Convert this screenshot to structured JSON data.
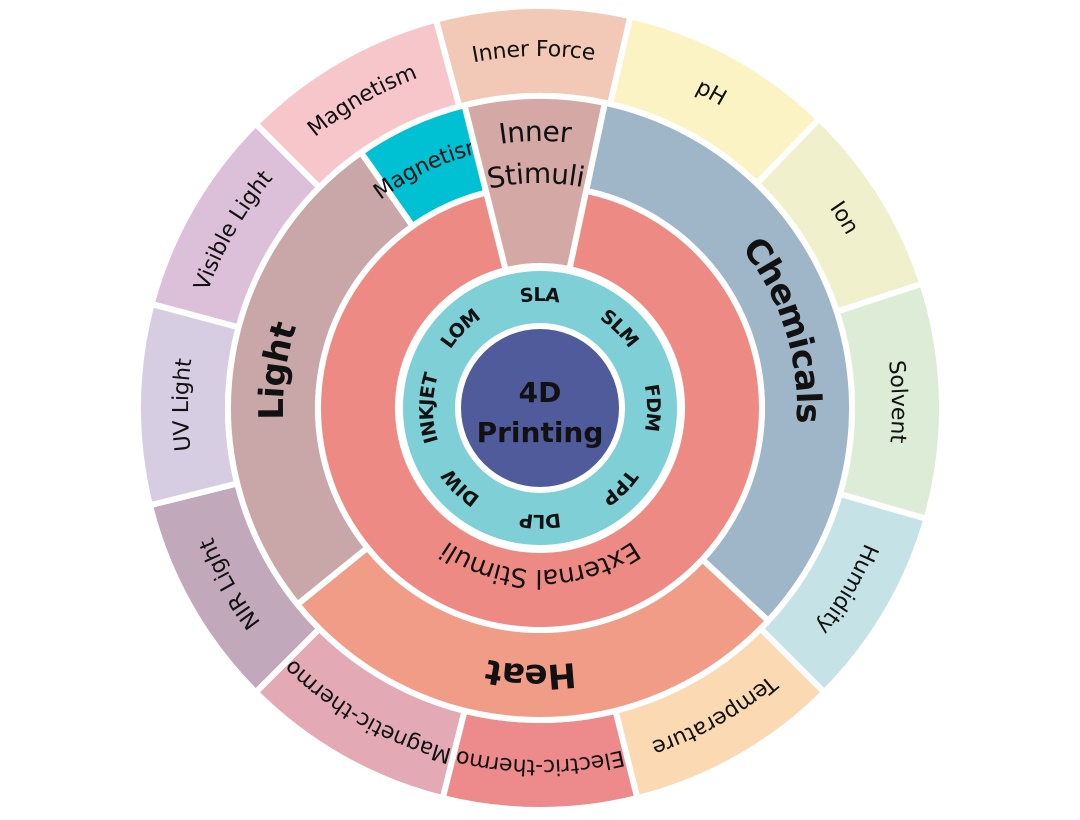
{
  "center": {
    "lines": [
      "4D",
      "Printing"
    ],
    "color": "#4f5b9a"
  },
  "methods_ring": {
    "color": "#7ecfd6",
    "items": [
      {
        "label": "SLA",
        "angle": 0
      },
      {
        "label": "SLM",
        "angle": 45
      },
      {
        "label": "FDM",
        "angle": 90
      },
      {
        "label": "TPP",
        "angle": 135
      },
      {
        "label": "DLP",
        "angle": 180
      },
      {
        "label": "DIW",
        "angle": 225
      },
      {
        "label": "INKJET",
        "angle": 270
      },
      {
        "label": "LOM",
        "angle": 315
      }
    ]
  },
  "stimuli_ring": [
    {
      "label": "External Stimuli",
      "from": 12,
      "to": 346,
      "color": "#ee8a84"
    }
  ],
  "category_ring": [
    {
      "label": "Chemicals",
      "from": 12,
      "to": 133,
      "color": "#9fb6c9"
    },
    {
      "label": "Heat",
      "from": 133,
      "to": 231,
      "color": "#f09c87"
    },
    {
      "label": "Light",
      "from": 231,
      "to": 325,
      "color": "#c9a7a9"
    },
    {
      "label": "Magnetism",
      "from": 325,
      "to": 346,
      "color": "#00c0d4"
    },
    {
      "label": "Inner Stimuli",
      "lines": [
        "Inner",
        "Stimuli"
      ],
      "from": 346,
      "to": 372,
      "color": "#d4a9a5"
    }
  ],
  "outer_ring": [
    {
      "label": "Inner Force",
      "from": 345,
      "to": 373,
      "color": "#f2c9b6"
    },
    {
      "label": "pH",
      "from": 13,
      "to": 44,
      "color": "#fbf3c3"
    },
    {
      "label": "Ion",
      "from": 44,
      "to": 72,
      "color": "#f0f0cc"
    },
    {
      "label": "Solvent",
      "from": 72,
      "to": 106,
      "color": "#dcecd6"
    },
    {
      "label": "Humidity",
      "from": 106,
      "to": 135,
      "color": "#c5e3e6"
    },
    {
      "label": "Temperature",
      "from": 135,
      "to": 166,
      "color": "#fbd9b3"
    },
    {
      "label": "Electric-thermo",
      "from": 166,
      "to": 194,
      "color": "#ec8a8c"
    },
    {
      "label": "Magnetic-thermo",
      "from": 194,
      "to": 225,
      "color": "#e3aab5"
    },
    {
      "label": "NIR Light",
      "from": 225,
      "to": 256,
      "color": "#c2a8bb"
    },
    {
      "label": "UV Light",
      "from": 256,
      "to": 285,
      "color": "#d6cde3"
    },
    {
      "label": "Visible Light",
      "from": 285,
      "to": 315,
      "color": "#dcbfd8"
    },
    {
      "label": "Magnetism",
      "from": 315,
      "to": 345,
      "color": "#f6c6cb"
    }
  ]
}
